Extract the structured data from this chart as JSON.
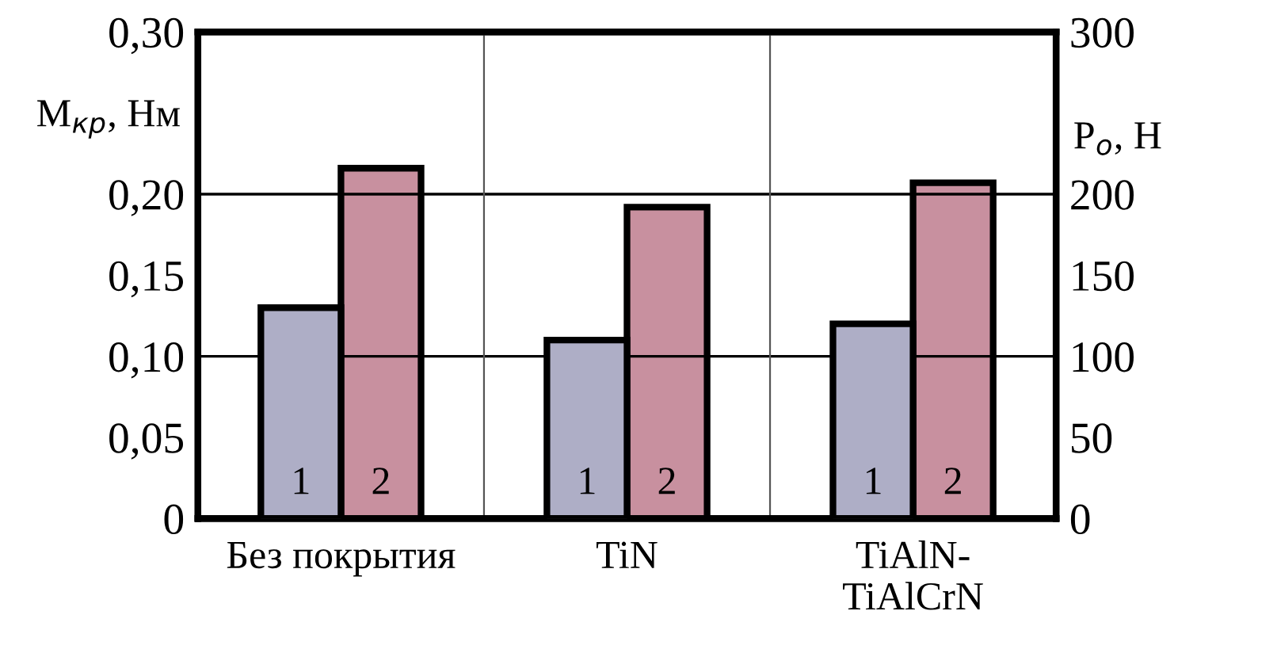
{
  "chart_data": {
    "type": "bar",
    "categories": [
      "Без покрытия",
      "TiN",
      "TiAlN-\nTiAlCrN"
    ],
    "series": [
      {
        "name": "1",
        "color": "#aeaec6",
        "values": [
          0.13,
          0.11,
          0.12
        ]
      },
      {
        "name": "2",
        "color": "#c8909f",
        "values": [
          216,
          192,
          207
        ],
        "axis": "y2"
      }
    ],
    "ylabel": "M$_{кр}$, Нм",
    "y2label": "P$_{о}$, Н",
    "ylim": [
      0,
      0.3
    ],
    "yticks": [
      0,
      {
        "value": 0.05,
        "label": "0,05"
      },
      {
        "value": 0.1,
        "label": "0,10"
      },
      {
        "value": 0.15,
        "label": "0,15"
      },
      {
        "value": 0.2,
        "label": "0,20"
      },
      {
        "value": 0.3,
        "label": "0,30"
      }
    ],
    "y2lim": [
      0,
      300
    ],
    "y2ticks": [
      0,
      50,
      100,
      150,
      200,
      300
    ],
    "ref_lines": [
      {
        "axis": "y",
        "value": 0.1,
        "color": "#000000"
      },
      {
        "axis": "y",
        "value": 0.2,
        "color": "#000000"
      }
    ],
    "grid": "x",
    "legend": false
  }
}
